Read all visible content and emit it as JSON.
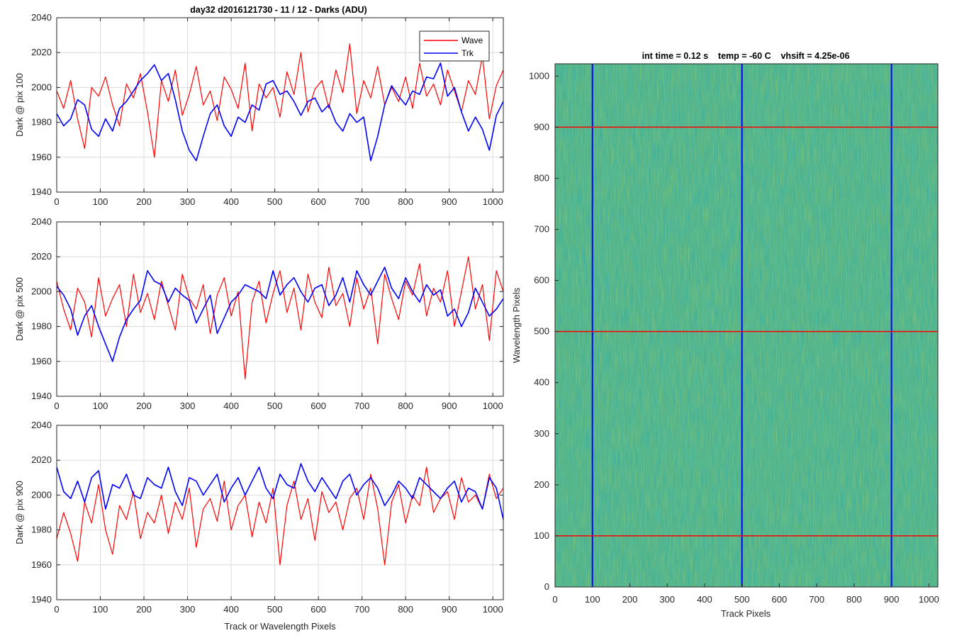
{
  "figure_title": "day32 d2016121730 - 11 / 12 - Darks (ADU)",
  "chart_data": [
    {
      "type": "line",
      "title": "day32 d2016121730 - 11 / 12 - Darks (ADU)",
      "xlabel": "",
      "ylabel": "Dark @ pix 100",
      "xlim": [
        0,
        1024
      ],
      "ylim": [
        1940,
        2040
      ],
      "xticks": [
        0,
        100,
        200,
        300,
        400,
        500,
        600,
        700,
        800,
        900,
        1000
      ],
      "yticks": [
        1940,
        1960,
        1980,
        2000,
        2020,
        2040
      ],
      "grid": true,
      "legend": "top-right",
      "x_step": 16,
      "series": [
        {
          "name": "Wave",
          "color": "#ff0000",
          "values": [
            1998,
            1988,
            2004,
            1982,
            1965,
            2000,
            1995,
            2006,
            1990,
            1978,
            2002,
            1994,
            2008,
            1986,
            1960,
            2004,
            1992,
            2010,
            1984,
            1996,
            2012,
            1990,
            1998,
            1981,
            2006,
            1999,
            1988,
            2014,
            1975,
            2002,
            1994,
            2000,
            1983,
            2009,
            1996,
            2020,
            1986,
            1999,
            2004,
            1988,
            2010,
            1997,
            2025,
            1985,
            2004,
            1994,
            2012,
            1990,
            2000,
            1992,
            2006,
            1988,
            2014,
            1995,
            2002,
            1990,
            2010,
            1998,
            1986,
            2004,
            1996,
            2018,
            1982,
            2001,
            2010
          ]
        },
        {
          "name": "Trk",
          "color": "#0000ff",
          "values": [
            1985,
            1978,
            1982,
            1993,
            1990,
            1976,
            1972,
            1982,
            1975,
            1988,
            1992,
            1998,
            2004,
            2008,
            2013,
            2004,
            2008,
            1993,
            1975,
            1964,
            1958,
            1972,
            1985,
            1990,
            1978,
            1972,
            1983,
            1980,
            1990,
            1987,
            2002,
            2004,
            1996,
            1998,
            1992,
            1984,
            1992,
            1994,
            1986,
            1990,
            1980,
            1975,
            1985,
            1980,
            1983,
            1958,
            1972,
            1990,
            2001,
            1995,
            1990,
            1998,
            1996,
            2006,
            2005,
            2014,
            1995,
            2000,
            1986,
            1975,
            1983,
            1976,
            1964,
            1984,
            1992
          ]
        }
      ]
    },
    {
      "type": "line",
      "title": "",
      "xlabel": "",
      "ylabel": "Dark @ pix 500",
      "xlim": [
        0,
        1024
      ],
      "ylim": [
        1940,
        2040
      ],
      "xticks": [
        0,
        100,
        200,
        300,
        400,
        500,
        600,
        700,
        800,
        900,
        1000
      ],
      "yticks": [
        1940,
        1960,
        1980,
        2000,
        2020,
        2040
      ],
      "grid": true,
      "legend": "none",
      "x_step": 16,
      "series": [
        {
          "name": "Wave",
          "color": "#ff0000",
          "values": [
            2006,
            1990,
            1978,
            2002,
            1994,
            1974,
            2008,
            1986,
            1996,
            2004,
            1980,
            2010,
            1988,
            1999,
            1984,
            2006,
            1992,
            1978,
            2010,
            1996,
            1990,
            2004,
            1976,
            1998,
            2008,
            1986,
            2000,
            1950,
            1994,
            2006,
            1982,
            1999,
            2012,
            1988,
            2002,
            1978,
            2010,
            1994,
            1985,
            2014,
            1992,
            1999,
            1980,
            2008,
            1990,
            2002,
            1970,
            2010,
            1996,
            1984,
            2006,
            1998,
            2016,
            1986,
            2002,
            1994,
            2012,
            1980,
            2000,
            2020,
            1990,
            2004,
            1972,
            2012,
            2000
          ]
        },
        {
          "name": "Trk",
          "color": "#0000ff",
          "values": [
            2003,
            1998,
            1990,
            1975,
            1986,
            1992,
            1980,
            1970,
            1960,
            1974,
            1984,
            1990,
            1995,
            2012,
            2006,
            2004,
            1994,
            2002,
            1998,
            1995,
            1982,
            1990,
            1998,
            1976,
            1985,
            1994,
            1998,
            2004,
            2002,
            2000,
            1996,
            2012,
            1998,
            2004,
            2008,
            2000,
            1994,
            2002,
            2004,
            1992,
            1998,
            2008,
            1994,
            2012,
            2004,
            1998,
            2006,
            2014,
            2002,
            1996,
            2008,
            2000,
            1994,
            2004,
            1998,
            2001,
            1986,
            1990,
            1980,
            1988,
            2002,
            1994,
            1986,
            1990,
            1996
          ]
        }
      ]
    },
    {
      "type": "line",
      "title": "",
      "xlabel": "Track or Wavelength Pixels",
      "ylabel": "Dark @ pix 900",
      "xlim": [
        0,
        1024
      ],
      "ylim": [
        1940,
        2040
      ],
      "xticks": [
        0,
        100,
        200,
        300,
        400,
        500,
        600,
        700,
        800,
        900,
        1000
      ],
      "yticks": [
        1940,
        1960,
        1980,
        2000,
        2020,
        2040
      ],
      "grid": true,
      "legend": "none",
      "x_step": 16,
      "series": [
        {
          "name": "Wave",
          "color": "#ff0000",
          "values": [
            1975,
            1990,
            1978,
            1962,
            1996,
            1984,
            2006,
            1980,
            1966,
            1994,
            1986,
            2002,
            1975,
            1990,
            1984,
            2000,
            1978,
            1996,
            1986,
            2004,
            1970,
            1992,
            1998,
            1985,
            2008,
            1980,
            1994,
            2000,
            1976,
            1996,
            1984,
            2004,
            1960,
            1994,
            2008,
            1986,
            1998,
            1974,
            2002,
            1990,
            1996,
            1980,
            1998,
            2004,
            1986,
            2012,
            1992,
            1960,
            1996,
            2006,
            1984,
            2000,
            1994,
            2016,
            1990,
            1998,
            2002,
            1986,
            2010,
            1996,
            2000,
            1992,
            2012,
            1998,
            2004
          ]
        },
        {
          "name": "Trk",
          "color": "#0000ff",
          "values": [
            2016,
            2002,
            1998,
            2008,
            1996,
            2010,
            2014,
            1992,
            2006,
            2004,
            2012,
            2000,
            1998,
            2010,
            2006,
            2004,
            2016,
            2002,
            1994,
            2010,
            2008,
            2000,
            2006,
            2012,
            1996,
            2004,
            2010,
            2000,
            2008,
            2016,
            2004,
            1998,
            2012,
            2006,
            2004,
            2018,
            2008,
            2002,
            2010,
            2004,
            1998,
            2008,
            2012,
            2000,
            2006,
            2010,
            2004,
            1994,
            2000,
            2008,
            2004,
            1998,
            2010,
            2006,
            2002,
            1998,
            2004,
            2008,
            1996,
            2004,
            2002,
            1992,
            2010,
            2004,
            1986
          ]
        }
      ]
    },
    {
      "type": "heatmap",
      "title": "int time = 0.12 s    temp = -60 C    vhsift = 4.25e-06",
      "xlabel": "Track Pixels",
      "ylabel": "Wavelength Pixels",
      "xlim": [
        0,
        1024
      ],
      "ylim": [
        0,
        1024
      ],
      "xticks": [
        0,
        100,
        200,
        300,
        400,
        500,
        600,
        700,
        800,
        900,
        1000
      ],
      "yticks": [
        0,
        100,
        200,
        300,
        400,
        500,
        600,
        700,
        800,
        900,
        1000
      ],
      "colormap": "parula",
      "marker_lines": {
        "vertical_at_x": [
          100,
          500,
          900
        ],
        "vertical_color": "#0000ff",
        "horizontal_at_y": [
          100,
          500,
          900
        ],
        "horizontal_color": "#ff0000"
      }
    }
  ]
}
